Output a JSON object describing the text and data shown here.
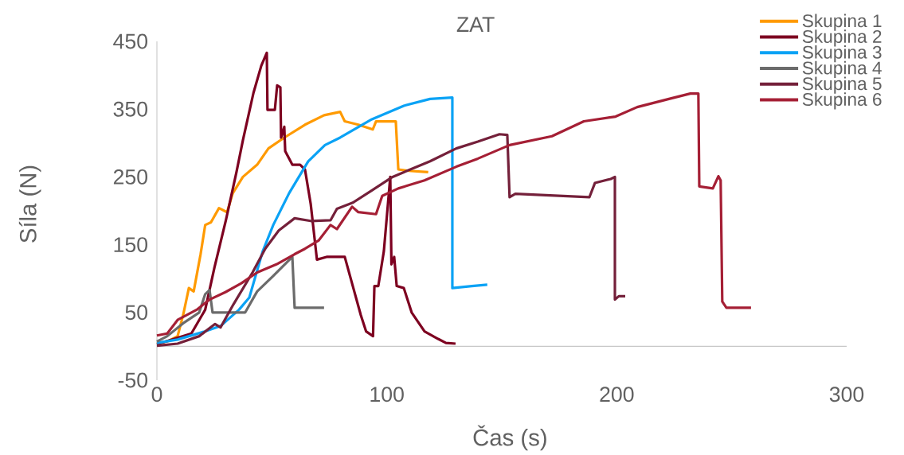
{
  "chart_data": {
    "type": "line",
    "title": "ZAT",
    "xlabel": "Čas (s)",
    "ylabel": "Síla (N)",
    "xlim": [
      0,
      300
    ],
    "xticks": [
      0,
      100,
      200,
      300
    ],
    "ylim": [
      -50,
      450
    ],
    "yticks": [
      -50,
      50,
      150,
      250,
      350,
      450
    ],
    "legend": "top right",
    "marker": "none",
    "line_style": "solid",
    "series": [
      {
        "name": "Skupina 1",
        "color": "#ff9a00",
        "x": [
          0,
          5,
          9,
          11.4,
          13.9,
          16,
          19,
          21,
          23.5,
          27,
          30.5,
          33,
          37.4,
          43.6,
          48.5,
          55.4,
          64.4,
          72.7,
          79.7,
          81.7,
          87.6,
          93.9,
          95.3,
          103.9,
          105,
          109.5,
          118
        ],
        "values": [
          4,
          8,
          15,
          46,
          86,
          81,
          136,
          179,
          183,
          204,
          198,
          226,
          250,
          268,
          292,
          308,
          327,
          341,
          346,
          332,
          327,
          320,
          332,
          332,
          261,
          259,
          257
        ]
      },
      {
        "name": "Skupina 2",
        "color": "#7d0020",
        "x": [
          0,
          15,
          21,
          25,
          30,
          34.6,
          37.4,
          42,
          45.4,
          47.8,
          48.1,
          51.3,
          52.3,
          53.7,
          54,
          55.4,
          55.8,
          58.9,
          62.3,
          64.4,
          66.9,
          69.6,
          73.8,
          81.7,
          85.2,
          88.7,
          91,
          94,
          94.6,
          96.3,
          98.7,
          101.5,
          102,
          103.2,
          104.3,
          107.4,
          110.8,
          116.4,
          122.3,
          125.7,
          129.9
        ],
        "values": [
          3,
          19,
          54,
          116,
          186,
          257,
          304,
          374,
          414,
          433,
          349,
          349,
          385,
          382,
          308,
          324,
          288,
          268,
          268,
          261,
          210,
          128,
          132,
          132,
          89,
          46,
          22,
          15,
          89,
          89,
          140,
          250,
          121,
          132,
          89,
          86,
          50,
          22,
          11,
          5,
          4
        ]
      },
      {
        "name": "Skupina 3",
        "color": "#0aa2f5",
        "x": [
          0,
          9,
          20.8,
          27.7,
          35.7,
          40.2,
          46,
          50.6,
          57.5,
          65.8,
          73.1,
          79.7,
          93.5,
          107.4,
          118.8,
          128.5,
          128.5,
          137,
          143.7
        ],
        "values": [
          5,
          10,
          22,
          30,
          54,
          72,
          140,
          179,
          226,
          273,
          297,
          308,
          335,
          355,
          365,
          367,
          86,
          89,
          91
        ]
      },
      {
        "name": "Skupina 4",
        "color": "#6b6b6b",
        "x": [
          0,
          4.5,
          11.4,
          18.4,
          21,
          22.9,
          24.2,
          38.4,
          43.6,
          50.6,
          58.9,
          59.9,
          72.7
        ],
        "values": [
          7,
          15,
          34,
          50,
          77,
          83,
          50,
          50,
          81,
          104,
          132,
          57,
          57
        ]
      },
      {
        "name": "Skupina 5",
        "color": "#74203a",
        "x": [
          0,
          9,
          18.4,
          25.3,
          27.7,
          33.3,
          41.6,
          47.1,
          53,
          59.9,
          66.9,
          75.5,
          78.3,
          85.2,
          93.5,
          102.5,
          118.8,
          130.2,
          139.6,
          149,
          152.4,
          153.4,
          155.9,
          188.1,
          190.5,
          197.4,
          199.2,
          199.2,
          200.9,
          203.7
        ],
        "values": [
          1,
          4,
          15,
          33,
          28,
          62,
          109,
          144,
          171,
          189,
          185,
          186,
          203,
          212,
          230,
          250,
          273,
          292,
          302,
          313,
          312,
          220,
          225,
          220,
          241,
          247,
          250,
          69,
          74,
          74
        ]
      },
      {
        "name": "Skupina 6",
        "color": "#a51f35",
        "x": [
          0,
          4.5,
          9,
          17.3,
          22.9,
          29.8,
          36.7,
          43.6,
          52,
          59.9,
          64.4,
          70.3,
          75.5,
          78.3,
          84.9,
          87.6,
          95.3,
          98,
          105,
          116.4,
          130.2,
          139.6,
          153.4,
          171.8,
          185.7,
          199.5,
          208.9,
          222.7,
          232,
          235.5,
          235.9,
          241.8,
          244.2,
          245.2,
          245.9,
          247.7,
          258.4
        ],
        "values": [
          16,
          19,
          39,
          54,
          69,
          80,
          93,
          109,
          121,
          136,
          144,
          156,
          179,
          173,
          206,
          198,
          195,
          222,
          233,
          245,
          265,
          277,
          297,
          310,
          332,
          339,
          353,
          365,
          373,
          373,
          236,
          233,
          251,
          245,
          66,
          57,
          57
        ]
      }
    ]
  }
}
